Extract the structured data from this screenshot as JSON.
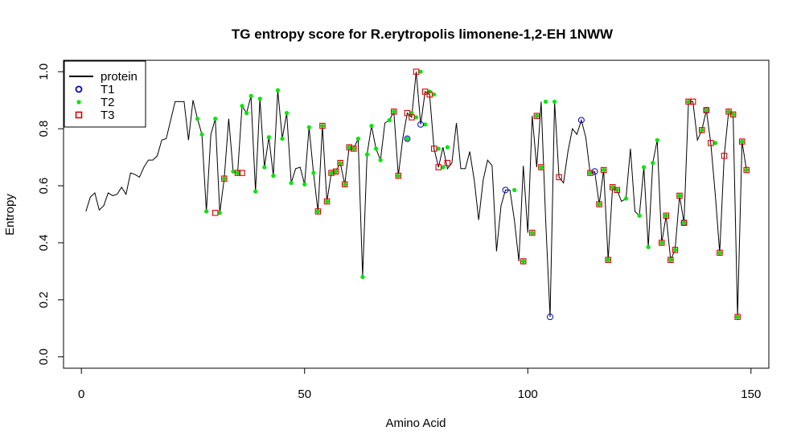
{
  "chart_data": {
    "type": "line",
    "title": "TG entropy score for  R.erytropolis limonene-1,2-EH 1NWW",
    "xlabel": "Amino Acid",
    "ylabel": "Entropy",
    "xlim": [
      -4,
      154
    ],
    "ylim": [
      -0.04,
      1.04
    ],
    "xticks": [
      0,
      50,
      100,
      150
    ],
    "yticks": [
      0.0,
      0.2,
      0.4,
      0.6,
      0.8,
      1.0
    ],
    "ytick_labels": [
      "0.0",
      "0.2",
      "0.4",
      "0.6",
      "0.8",
      "1.0"
    ],
    "xtick_labels": [
      "0",
      "50",
      "100",
      "150"
    ],
    "grid": false,
    "legend_position": "top-left",
    "legend": [
      {
        "label": "protein",
        "kind": "line",
        "color": "#000000"
      },
      {
        "label": "T1",
        "kind": "open-circle",
        "color": "#0000cc"
      },
      {
        "label": "T2",
        "kind": "filled-dot",
        "color": "#00e600"
      },
      {
        "label": "T3",
        "kind": "open-square",
        "color": "#dd0000"
      }
    ],
    "series": [
      {
        "name": "protein",
        "x": [
          1,
          2,
          3,
          4,
          5,
          6,
          7,
          8,
          9,
          10,
          11,
          12,
          13,
          14,
          15,
          16,
          17,
          18,
          19,
          20,
          21,
          22,
          23,
          24,
          25,
          26,
          27,
          28,
          29,
          30,
          31,
          32,
          33,
          34,
          35,
          36,
          37,
          38,
          39,
          40,
          41,
          42,
          43,
          44,
          45,
          46,
          47,
          48,
          49,
          50,
          51,
          52,
          53,
          54,
          55,
          56,
          57,
          58,
          59,
          60,
          61,
          62,
          63,
          64,
          65,
          66,
          67,
          68,
          69,
          70,
          71,
          72,
          73,
          74,
          75,
          76,
          77,
          78,
          79,
          80,
          81,
          82,
          83,
          84,
          85,
          86,
          87,
          88,
          89,
          90,
          91,
          92,
          93,
          94,
          95,
          96,
          97,
          98,
          99,
          100,
          101,
          102,
          103,
          104,
          105,
          106,
          107,
          108,
          109,
          110,
          111,
          112,
          113,
          114,
          115,
          116,
          117,
          118,
          119,
          120,
          121,
          122,
          123,
          124,
          125,
          126,
          127,
          128,
          129,
          130,
          131,
          132,
          133,
          134,
          135,
          136,
          137,
          138,
          139,
          140,
          141,
          142,
          143,
          144,
          145,
          146,
          147,
          148,
          149
        ],
        "y": [
          0.51,
          0.56,
          0.575,
          0.515,
          0.53,
          0.575,
          0.565,
          0.57,
          0.595,
          0.57,
          0.645,
          0.64,
          0.63,
          0.665,
          0.69,
          0.69,
          0.705,
          0.76,
          0.765,
          0.83,
          0.895,
          0.895,
          0.895,
          0.76,
          0.9,
          0.835,
          0.78,
          0.51,
          0.78,
          0.835,
          0.505,
          0.625,
          0.835,
          0.65,
          0.645,
          0.88,
          0.855,
          0.915,
          0.58,
          0.905,
          0.665,
          0.77,
          0.635,
          0.935,
          0.765,
          0.855,
          0.61,
          0.66,
          0.665,
          0.605,
          0.805,
          0.645,
          0.51,
          0.81,
          0.545,
          0.645,
          0.65,
          0.68,
          0.605,
          0.735,
          0.73,
          0.765,
          0.28,
          0.71,
          0.81,
          0.73,
          0.69,
          0.82,
          0.83,
          0.86,
          0.635,
          0.765,
          0.855,
          0.84,
          1.0,
          0.815,
          0.93,
          0.92,
          0.73,
          0.665,
          0.735,
          0.66,
          0.68,
          0.82,
          0.66,
          0.66,
          0.72,
          0.62,
          0.48,
          0.62,
          0.69,
          0.67,
          0.37,
          0.53,
          0.585,
          0.585,
          0.48,
          0.335,
          0.67,
          0.435,
          0.845,
          0.665,
          0.895,
          0.48,
          0.14,
          0.895,
          0.63,
          0.61,
          0.72,
          0.8,
          0.78,
          0.83,
          0.77,
          0.64,
          0.65,
          0.535,
          0.655,
          0.34,
          0.595,
          0.585,
          0.545,
          0.555,
          0.73,
          0.51,
          0.495,
          0.665,
          0.385,
          0.68,
          0.76,
          0.4,
          0.495,
          0.34,
          0.375,
          0.565,
          0.47,
          0.895,
          0.895,
          0.76,
          0.795,
          0.865,
          0.75,
          0.57,
          0.365,
          0.705,
          0.86,
          0.85,
          0.14,
          0.755,
          0.655
        ]
      },
      {
        "name": "T1",
        "x": [
          73,
          76,
          95,
          105,
          112,
          115,
          135,
          140
        ],
        "y": [
          0.765,
          0.815,
          0.585,
          0.14,
          0.83,
          0.65,
          0.47,
          0.865
        ]
      },
      {
        "name": "T2",
        "x": [
          26,
          27,
          28,
          30,
          31,
          32,
          34,
          35,
          36,
          37,
          38,
          39,
          40,
          41,
          42,
          43,
          44,
          45,
          46,
          47,
          50,
          51,
          52,
          53,
          54,
          55,
          56,
          57,
          58,
          59,
          60,
          61,
          62,
          63,
          64,
          65,
          66,
          67,
          69,
          70,
          71,
          73,
          74,
          75,
          76,
          77,
          78,
          79,
          80,
          81,
          82,
          97,
          99,
          101,
          102,
          103,
          104,
          106,
          114,
          116,
          117,
          118,
          119,
          120,
          122,
          125,
          126,
          127,
          128,
          129,
          130,
          131,
          132,
          133,
          134,
          135,
          136,
          139,
          140,
          142,
          143,
          145,
          146,
          147,
          148,
          149
        ],
        "y": [
          0.835,
          0.78,
          0.51,
          0.835,
          0.505,
          0.625,
          0.65,
          0.645,
          0.88,
          0.855,
          0.915,
          0.58,
          0.905,
          0.665,
          0.77,
          0.635,
          0.935,
          0.765,
          0.855,
          0.61,
          0.605,
          0.805,
          0.645,
          0.51,
          0.81,
          0.545,
          0.645,
          0.65,
          0.68,
          0.605,
          0.735,
          0.73,
          0.765,
          0.28,
          0.71,
          0.81,
          0.73,
          0.69,
          0.83,
          0.86,
          0.635,
          0.765,
          0.855,
          0.84,
          1.0,
          0.815,
          0.93,
          0.92,
          0.73,
          0.665,
          0.735,
          0.585,
          0.335,
          0.435,
          0.845,
          0.665,
          0.895,
          0.895,
          0.645,
          0.535,
          0.655,
          0.34,
          0.595,
          0.585,
          0.555,
          0.495,
          0.665,
          0.385,
          0.68,
          0.76,
          0.4,
          0.495,
          0.34,
          0.375,
          0.565,
          0.47,
          0.895,
          0.795,
          0.865,
          0.75,
          0.365,
          0.86,
          0.85,
          0.14,
          0.755,
          0.655
        ]
      },
      {
        "name": "T3",
        "x": [
          30,
          32,
          35,
          36,
          53,
          54,
          55,
          56,
          57,
          58,
          59,
          60,
          61,
          70,
          71,
          73,
          74,
          75,
          77,
          78,
          79,
          80,
          82,
          99,
          101,
          102,
          103,
          107,
          114,
          116,
          117,
          118,
          119,
          120,
          130,
          131,
          132,
          133,
          134,
          135,
          136,
          137,
          139,
          140,
          141,
          143,
          144,
          145,
          146,
          147,
          148,
          149
        ],
        "y": [
          0.505,
          0.625,
          0.645,
          0.645,
          0.51,
          0.81,
          0.545,
          0.645,
          0.65,
          0.68,
          0.605,
          0.735,
          0.73,
          0.86,
          0.635,
          0.855,
          0.84,
          1.0,
          0.93,
          0.92,
          0.73,
          0.665,
          0.68,
          0.335,
          0.435,
          0.845,
          0.665,
          0.63,
          0.645,
          0.535,
          0.655,
          0.34,
          0.595,
          0.585,
          0.4,
          0.495,
          0.34,
          0.375,
          0.565,
          0.47,
          0.895,
          0.895,
          0.795,
          0.865,
          0.75,
          0.365,
          0.705,
          0.86,
          0.85,
          0.14,
          0.755,
          0.655
        ]
      }
    ]
  }
}
